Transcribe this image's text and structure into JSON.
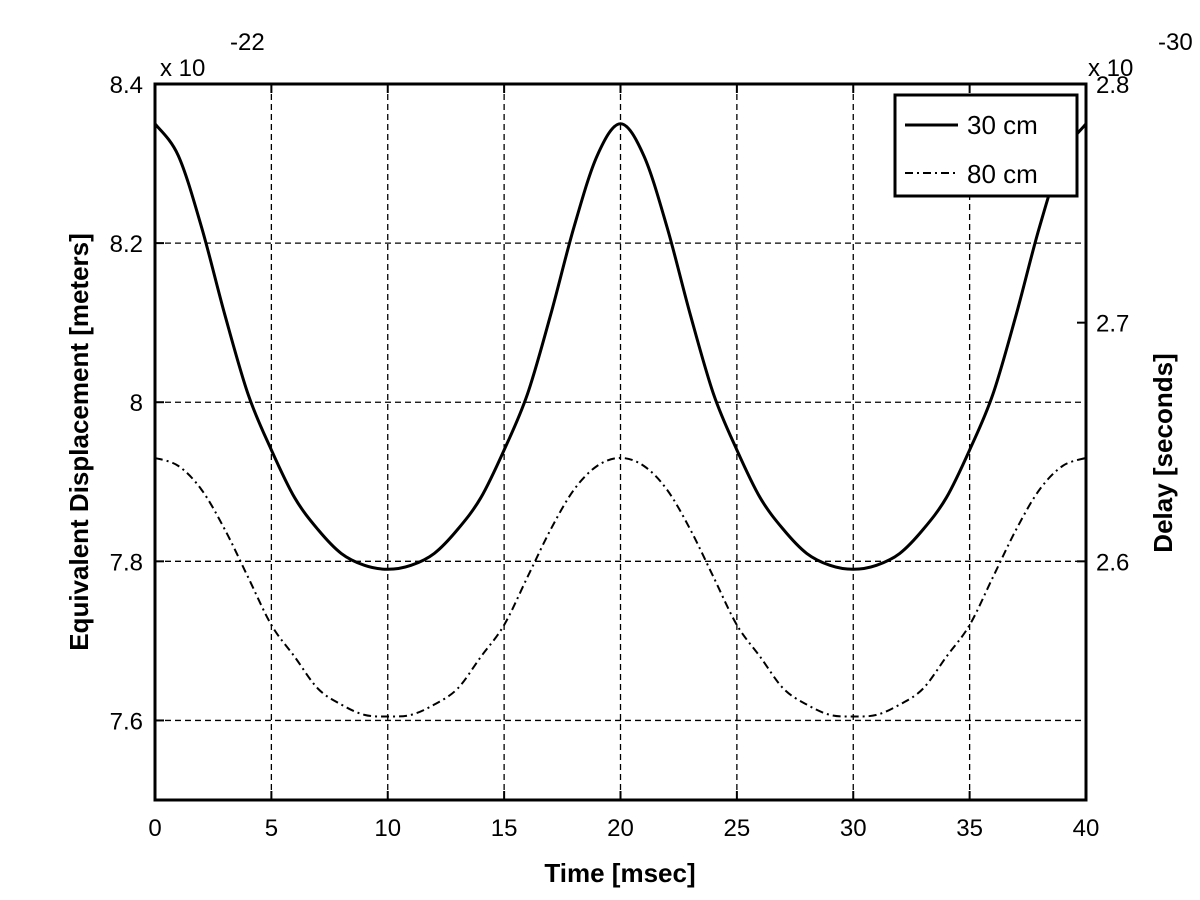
{
  "chart_data": {
    "type": "line",
    "xlabel": "Time [msec]",
    "ylabel": "Equivalent Displacement [meters]",
    "ylabel_right": "Delay [seconds]",
    "y_exponent_left": {
      "base": "x 10",
      "power": "-22"
    },
    "y_exponent_right": {
      "base": "x 10",
      "power": "-30"
    },
    "xlim": [
      0,
      40
    ],
    "ylim": [
      7.5,
      8.4
    ],
    "ylim_right": [
      2.5,
      2.8
    ],
    "xticks": [
      0,
      5,
      10,
      15,
      20,
      25,
      30,
      35,
      40
    ],
    "xtick_labels": [
      "0",
      "5",
      "10",
      "15",
      "20",
      "25",
      "30",
      "35",
      "40"
    ],
    "yticks": [
      7.6,
      7.8,
      8.0,
      8.2,
      8.4
    ],
    "ytick_labels": [
      "7.6",
      "7.8",
      "8",
      "8.2",
      "8.4"
    ],
    "yticks_right": [
      2.6,
      2.7,
      2.8
    ],
    "ytick_labels_right": [
      "2.6",
      "2.7",
      "2.8"
    ],
    "grid": true,
    "legend_position": "top-right",
    "series": [
      {
        "name": "30 cm",
        "style": "solid",
        "color": "#000000",
        "x": [
          0,
          1,
          2,
          3,
          4,
          5,
          6,
          7,
          8,
          9,
          10,
          11,
          12,
          13,
          14,
          15,
          16,
          17,
          18,
          19,
          20,
          21,
          22,
          23,
          24,
          25,
          26,
          27,
          28,
          29,
          30,
          31,
          32,
          33,
          34,
          35,
          36,
          37,
          38,
          39,
          40
        ],
        "y": [
          8.35,
          8.31,
          8.22,
          8.11,
          8.01,
          7.94,
          7.88,
          7.84,
          7.81,
          7.795,
          7.79,
          7.795,
          7.81,
          7.84,
          7.88,
          7.94,
          8.01,
          8.11,
          8.22,
          8.31,
          8.35,
          8.31,
          8.22,
          8.11,
          8.01,
          7.94,
          7.88,
          7.84,
          7.81,
          7.795,
          7.79,
          7.795,
          7.81,
          7.84,
          7.88,
          7.94,
          8.01,
          8.11,
          8.22,
          8.31,
          8.35
        ]
      },
      {
        "name": "80 cm",
        "style": "dash-dot",
        "color": "#000000",
        "x": [
          0,
          1,
          2,
          3,
          4,
          5,
          6,
          7,
          8,
          9,
          10,
          11,
          12,
          13,
          14,
          15,
          16,
          17,
          18,
          19,
          20,
          21,
          22,
          23,
          24,
          25,
          26,
          27,
          28,
          29,
          30,
          31,
          32,
          33,
          34,
          35,
          36,
          37,
          38,
          39,
          40
        ],
        "y": [
          7.93,
          7.92,
          7.89,
          7.84,
          7.78,
          7.72,
          7.68,
          7.64,
          7.62,
          7.607,
          7.605,
          7.607,
          7.62,
          7.64,
          7.68,
          7.72,
          7.78,
          7.84,
          7.89,
          7.92,
          7.93,
          7.92,
          7.89,
          7.84,
          7.78,
          7.72,
          7.68,
          7.64,
          7.62,
          7.607,
          7.605,
          7.607,
          7.62,
          7.64,
          7.68,
          7.72,
          7.78,
          7.84,
          7.89,
          7.92,
          7.93
        ]
      }
    ]
  }
}
